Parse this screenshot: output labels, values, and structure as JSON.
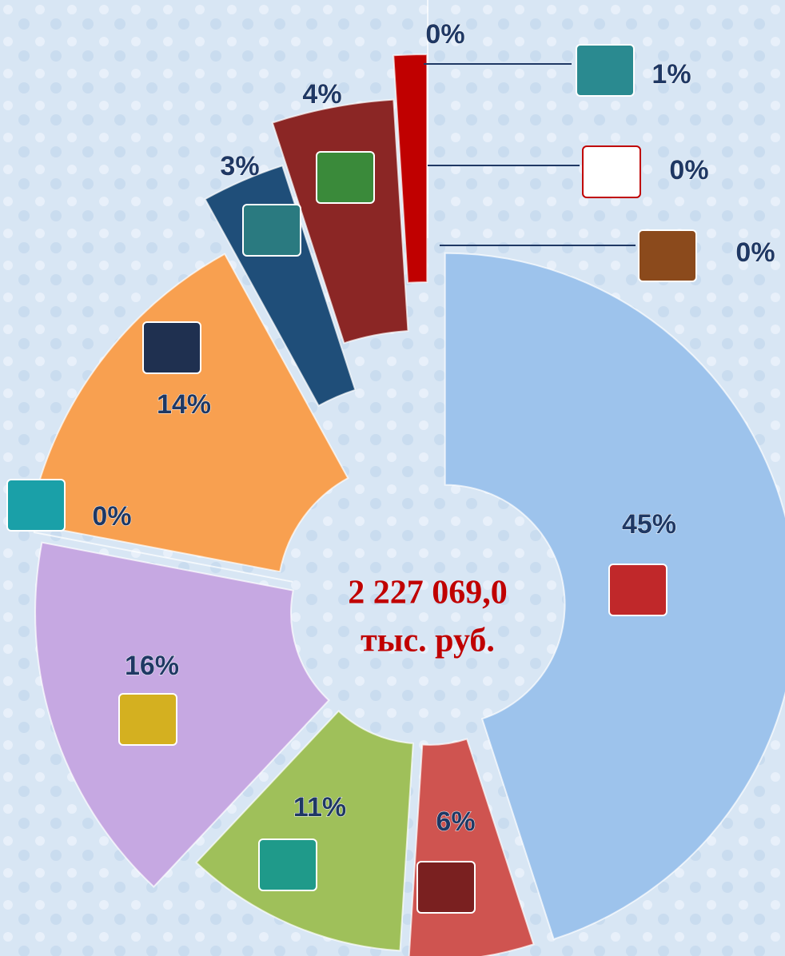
{
  "chart_data": {
    "type": "pie",
    "values": [
      45,
      6,
      11,
      16,
      0,
      14,
      3,
      4,
      1,
      0,
      0,
      0
    ],
    "value_labels": [
      "45%",
      "6%",
      "11%",
      "16%",
      "0%",
      "14%",
      "3%",
      "4%",
      "1%",
      "0%",
      "0%",
      "0%"
    ],
    "colors": [
      "#9dc3ec",
      "#cf5450",
      "#9fc05a",
      "#c6a8e2",
      "#2a9fa8",
      "#f8a050",
      "#1f4e79",
      "#8b2625",
      "#c00000",
      "#c9b037",
      "#c0504d",
      "#8b4a1c"
    ],
    "center_label": [
      "2 227 069,0",
      "тыс. руб."
    ]
  }
}
